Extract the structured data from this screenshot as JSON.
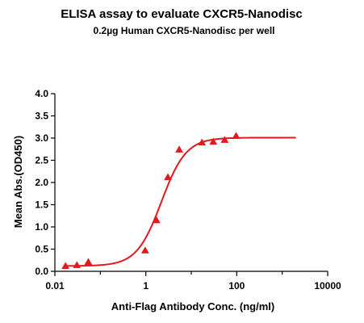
{
  "chart_data": {
    "type": "scatter",
    "title": "ELISA assay to evaluate CXCR5-Nanodisc",
    "subtitle": "0.2µg Human CXCR5-Nanodisc per well",
    "xlabel": "Anti-Flag Antibody Conc. (ng/ml)",
    "ylabel": "Mean Abs.(OD450)",
    "x_scale": "log",
    "xlim": [
      0.01,
      10000
    ],
    "ylim": [
      0,
      4.0
    ],
    "x_ticks": [
      0.01,
      1,
      100,
      10000
    ],
    "x_tick_labels": [
      "0.01",
      "1",
      "100",
      "10000"
    ],
    "y_ticks": [
      0,
      0.5,
      1.0,
      1.5,
      2.0,
      2.5,
      3.0,
      3.5,
      4.0
    ],
    "y_tick_labels": [
      "0.0",
      "0.5",
      "1.0",
      "1.5",
      "2.0",
      "2.5",
      "3.0",
      "3.5",
      "4.0"
    ],
    "grid": false,
    "legend": "none",
    "color": "#e31a1c",
    "marker": "triangle",
    "series": [
      {
        "x": [
          0.0171,
          0.0305,
          0.0543,
          0.967,
          1.72,
          3.06,
          5.43,
          17.2,
          30.5,
          54.3,
          96.7
        ],
        "y": [
          0.12,
          0.14,
          0.21,
          0.47,
          1.15,
          2.12,
          2.74,
          2.9,
          2.92,
          2.96,
          3.05
        ]
      }
    ],
    "fit_curve": {
      "model": "4PL",
      "bottom": 0.12,
      "top": 3.01,
      "ec50": 2.2,
      "hill": 1.6,
      "x_range": [
        0.0171,
        2000
      ]
    }
  }
}
